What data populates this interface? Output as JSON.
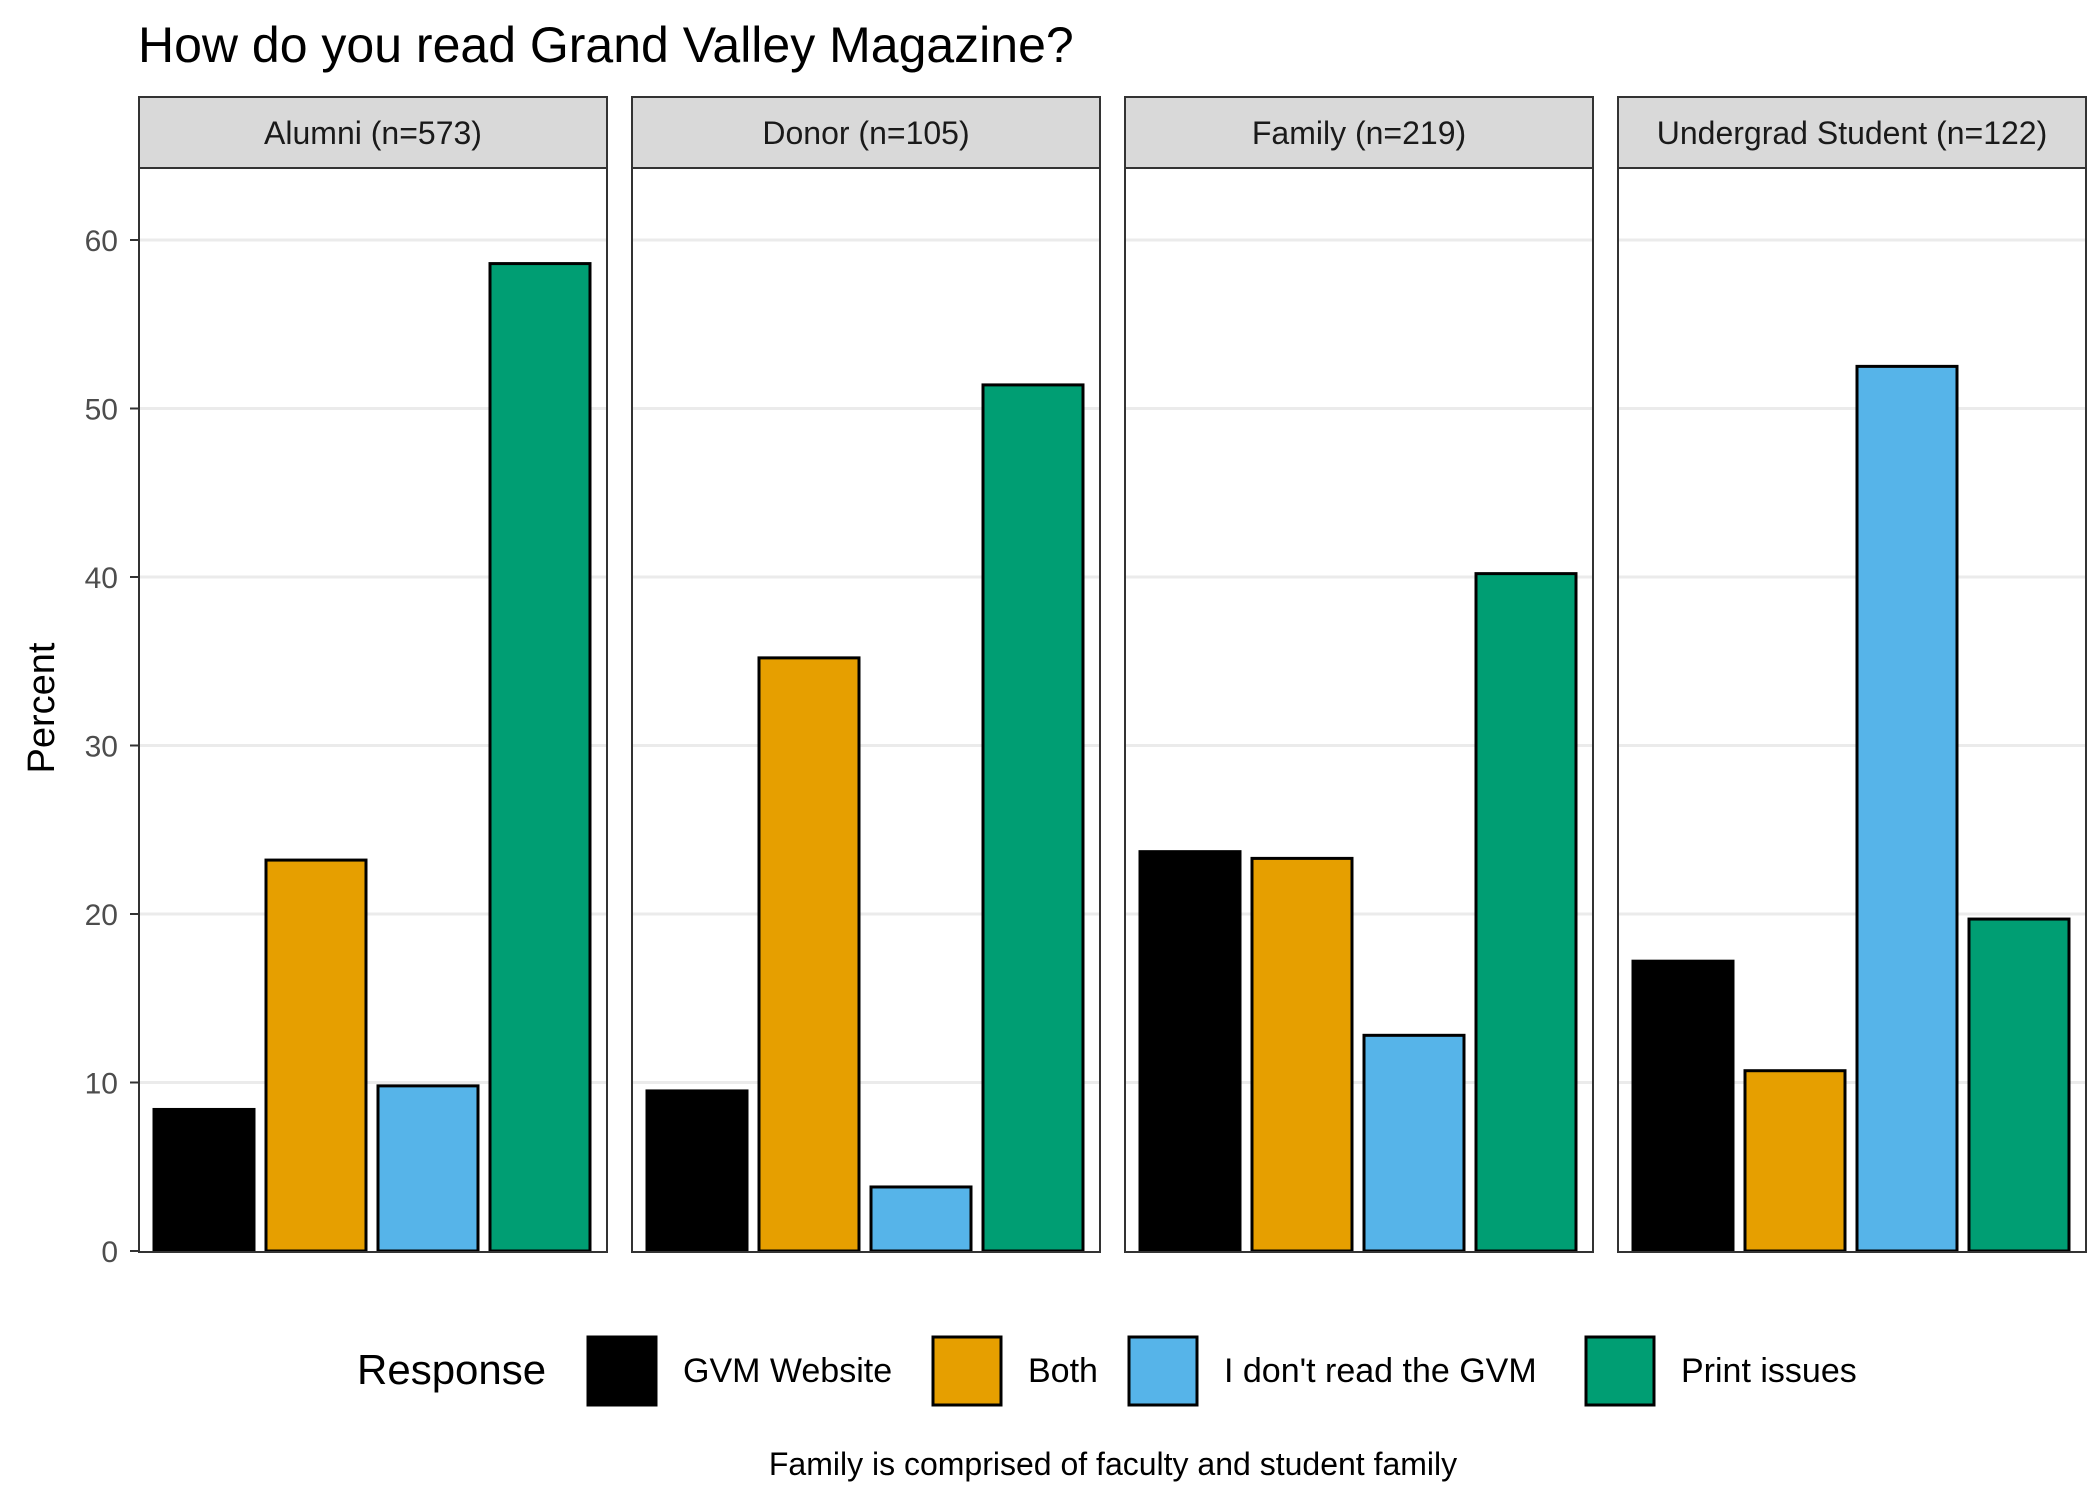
{
  "chart_data": {
    "type": "bar",
    "title": "How do you read Grand Valley Magazine?",
    "ylabel": "Percent",
    "xlabel": "",
    "ylim": [
      0,
      64
    ],
    "yticks": [
      0,
      10,
      20,
      30,
      40,
      50,
      60
    ],
    "grid": "horizontal",
    "caption": "Family is comprised of faculty and student family",
    "legend": {
      "title": "Response",
      "position": "bottom",
      "entries": [
        "GVM Website",
        "Both",
        "I don't read the GVM",
        "Print issues"
      ]
    },
    "colors": {
      "GVM Website": "#000000",
      "Both": "#E69F00",
      "I don't read the GVM": "#56B4E9",
      "Print issues": "#009E73"
    },
    "categories": [
      "GVM Website",
      "Both",
      "I don't read the GVM",
      "Print issues"
    ],
    "panels": [
      {
        "label": "Alumni (n=573)",
        "values": [
          8.4,
          23.2,
          9.8,
          58.6
        ]
      },
      {
        "label": "Donor (n=105)",
        "values": [
          9.5,
          35.2,
          3.8,
          51.4
        ]
      },
      {
        "label": "Family (n=219)",
        "values": [
          23.7,
          23.3,
          12.8,
          40.2
        ]
      },
      {
        "label": "Undergrad Student (n=122)",
        "values": [
          17.2,
          10.7,
          52.5,
          19.7
        ]
      }
    ]
  }
}
